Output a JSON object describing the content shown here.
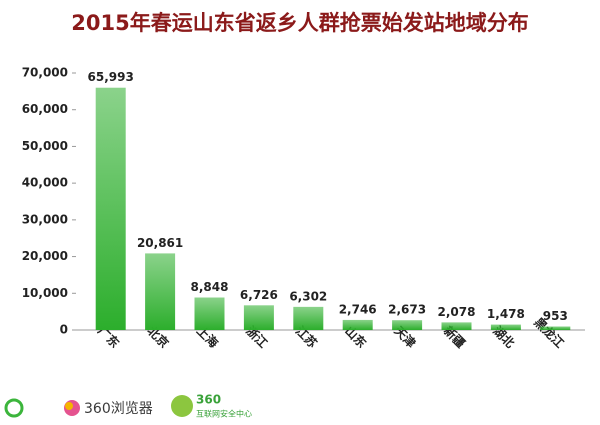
{
  "chart_data": {
    "type": "bar",
    "title": "2015年春运山东省返乡人群抢票始发站地域分布",
    "categories": [
      "广东",
      "北京",
      "上海",
      "浙江",
      "江苏",
      "山东",
      "天津",
      "新疆",
      "湖北",
      "黑龙江"
    ],
    "values": [
      65993,
      20861,
      8848,
      6726,
      6302,
      2746,
      2673,
      2078,
      1478,
      953
    ],
    "value_labels": [
      "65,993",
      "20,861",
      "8,848",
      "6,726",
      "6,302",
      "2,746",
      "2,673",
      "2,078",
      "1,478",
      "953"
    ],
    "color": "#2cae2c",
    "ylim": [
      0,
      70000
    ],
    "yticks": [
      0,
      {
        "value": 10000,
        "label": "10,000"
      },
      {
        "value": 20000,
        "label": "20,000"
      },
      {
        "value": 30000,
        "label": "30,000"
      },
      {
        "value": 40000,
        "label": "40,000"
      },
      {
        "value": 50000,
        "label": "50,000"
      },
      {
        "value": 60000,
        "label": "60,000"
      },
      {
        "value": 70000,
        "label": "70,000"
      }
    ],
    "grid": false
  },
  "logos": [
    "360浏览器",
    "360",
    "互联网安全中心"
  ]
}
